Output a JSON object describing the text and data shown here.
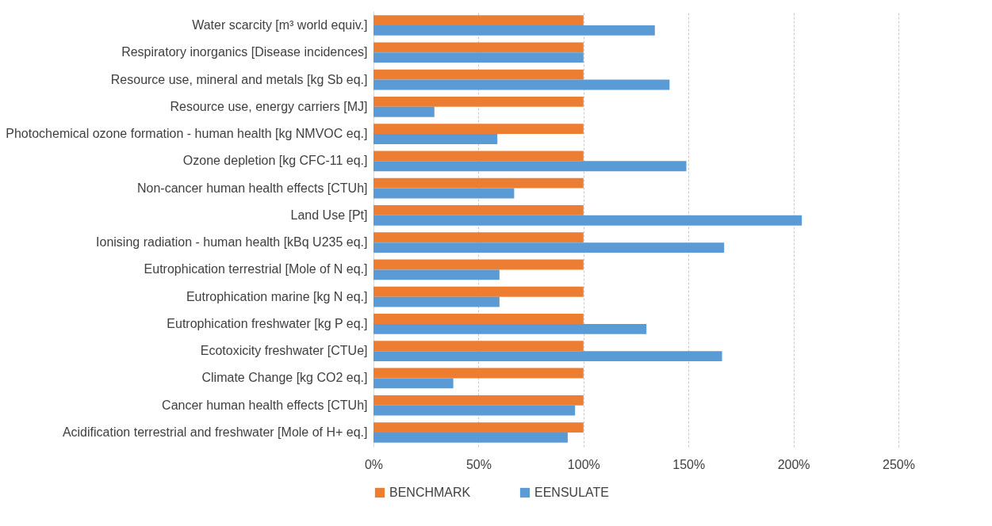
{
  "chart_data": {
    "type": "bar",
    "orientation": "horizontal",
    "categories": [
      "Water scarcity [m³ world equiv.]",
      "Respiratory inorganics [Disease incidences]",
      "Resource use, mineral and metals [kg Sb eq.]",
      "Resource use, energy carriers [MJ]",
      "Photochemical ozone formation - human health [kg NMVOC eq.]",
      "Ozone depletion [kg CFC-11 eq.]",
      "Non-cancer human health effects [CTUh]",
      "Land Use [Pt]",
      "Ionising radiation - human health [kBq U235 eq.]",
      "Eutrophication terrestrial [Mole of N eq.]",
      "Eutrophication marine [kg N eq.]",
      "Eutrophication freshwater [kg P eq.]",
      "Ecotoxicity freshwater [CTUe]",
      "Climate Change [kg CO2 eq.]",
      "Cancer human health effects [CTUh]",
      "Acidification terrestrial and freshwater [Mole of H+ eq.]"
    ],
    "series": [
      {
        "name": "BENCHMARK",
        "color": "#ed7d31",
        "values": [
          100,
          100,
          100,
          100,
          100,
          100,
          100,
          100,
          100,
          100,
          100,
          100,
          100,
          100,
          100,
          100
        ]
      },
      {
        "name": "EENSULATE",
        "color": "#5b9bd5",
        "values": [
          134,
          100,
          141,
          29,
          59,
          149,
          67,
          204,
          167,
          60,
          60,
          130,
          166,
          38,
          96,
          92.5
        ]
      }
    ],
    "xlim": [
      0,
      250
    ],
    "xticks": [
      {
        "value": 0,
        "label": "0%"
      },
      {
        "value": 50,
        "label": "50%"
      },
      {
        "value": 100,
        "label": "100%"
      },
      {
        "value": 150,
        "label": "150%"
      },
      {
        "value": 200,
        "label": "200%"
      },
      {
        "value": 250,
        "label": "250%"
      }
    ],
    "grid": "x",
    "legend": "bottom"
  }
}
